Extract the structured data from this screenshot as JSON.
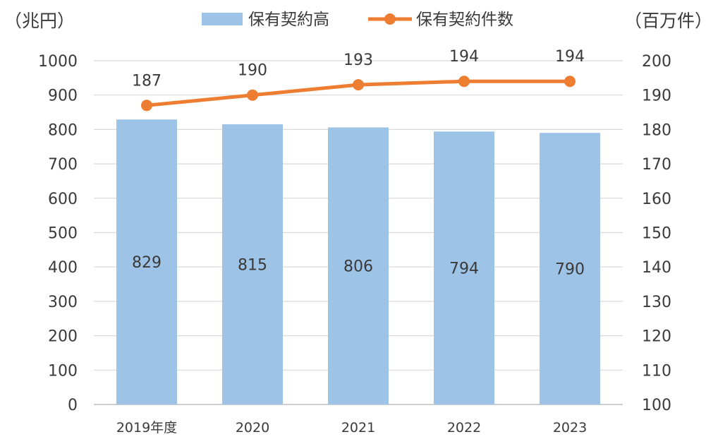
{
  "chart_data": {
    "type": "bar+line",
    "categories": [
      "2019年度",
      "2020",
      "2021",
      "2022",
      "2023"
    ],
    "left_axis": {
      "label": "（兆円）",
      "min": 0,
      "max": 1000,
      "step": 100,
      "ticks": [
        "0",
        "100",
        "200",
        "300",
        "400",
        "500",
        "600",
        "700",
        "800",
        "900",
        "1000"
      ]
    },
    "right_axis": {
      "label": "（百万件）",
      "min": 100,
      "max": 200,
      "step": 10,
      "ticks": [
        "100",
        "110",
        "120",
        "130",
        "140",
        "150",
        "160",
        "170",
        "180",
        "190",
        "200"
      ]
    },
    "series": [
      {
        "name": "保有契約高",
        "kind": "bar",
        "axis": "left",
        "color": "#9DC3E6",
        "values": [
          829,
          815,
          806,
          794,
          790
        ],
        "labels": [
          "829",
          "815",
          "806",
          "794",
          "790"
        ]
      },
      {
        "name": "保有契約件数",
        "kind": "line",
        "axis": "right",
        "color": "#ED7D31",
        "values": [
          187,
          190,
          193,
          194,
          194
        ],
        "labels": [
          "187",
          "190",
          "193",
          "194",
          "194"
        ]
      }
    ],
    "grid": true,
    "legend_position": "top-center"
  }
}
